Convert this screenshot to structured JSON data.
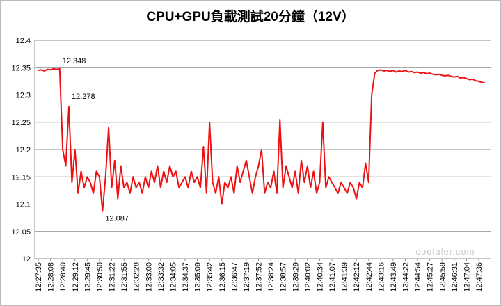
{
  "chart_data": {
    "type": "line",
    "title": "CPU+GPU負載測試20分鐘（12V）",
    "watermark": "coolaler.com",
    "categories": [
      "12:27:35",
      null,
      null,
      null,
      "12:28:08",
      null,
      null,
      null,
      "12:28:40",
      null,
      null,
      null,
      "12:29:12",
      null,
      null,
      null,
      "12:29:45",
      null,
      null,
      null,
      "12:30:50",
      null,
      null,
      null,
      "12:31:22",
      null,
      null,
      null,
      "12:31:55",
      null,
      null,
      null,
      "12:32:28",
      null,
      null,
      null,
      "12:33:00",
      null,
      null,
      null,
      "12:33:32",
      null,
      null,
      null,
      "12:34:05",
      null,
      null,
      null,
      "12:34:37",
      null,
      null,
      null,
      "12:35:09",
      null,
      null,
      null,
      "12:35:42",
      null,
      null,
      null,
      "12:36:15",
      null,
      null,
      null,
      "12:36:47",
      null,
      null,
      null,
      "12:37:19",
      null,
      null,
      null,
      "12:37:52",
      null,
      null,
      null,
      "12:38:24",
      null,
      null,
      null,
      "12:38:57",
      null,
      null,
      null,
      "12:39:29",
      null,
      null,
      null,
      "12:40:02",
      null,
      null,
      null,
      "12:40:34",
      null,
      null,
      null,
      "12:41:07",
      null,
      null,
      null,
      "12:41:39",
      null,
      null,
      null,
      "12:42:12",
      null,
      null,
      null,
      "12:42:44",
      null,
      null,
      null,
      "12:43:16",
      null,
      null,
      null,
      "12:43:49",
      null,
      null,
      null,
      "12:44:22",
      null,
      null,
      null,
      "12:44:54",
      null,
      null,
      null,
      "12:45:27",
      null,
      null,
      null,
      "12:45:59",
      null,
      null,
      null,
      "12:46:31",
      null,
      null,
      null,
      "12:47:04",
      null,
      null,
      null,
      "12:47:36",
      null,
      null
    ],
    "series": [
      {
        "name": "12V",
        "color": "#ee1111",
        "values": [
          12.345,
          12.346,
          12.344,
          12.347,
          12.346,
          12.348,
          12.347,
          12.348,
          12.2,
          12.17,
          12.278,
          12.14,
          12.2,
          12.12,
          12.16,
          12.13,
          12.15,
          12.14,
          12.12,
          12.16,
          12.15,
          12.087,
          12.15,
          12.24,
          12.13,
          12.18,
          12.11,
          12.17,
          12.13,
          12.14,
          12.12,
          12.15,
          12.13,
          12.14,
          12.12,
          12.15,
          12.13,
          12.16,
          12.14,
          12.17,
          12.13,
          12.16,
          12.14,
          12.17,
          12.15,
          12.16,
          12.13,
          12.14,
          12.15,
          12.13,
          12.16,
          12.14,
          12.15,
          12.13,
          12.205,
          12.12,
          12.25,
          12.14,
          12.12,
          12.15,
          12.1,
          12.14,
          12.13,
          12.15,
          12.12,
          12.17,
          12.14,
          12.16,
          12.18,
          12.15,
          12.12,
          12.15,
          12.17,
          12.2,
          12.12,
          12.14,
          12.13,
          12.16,
          12.12,
          12.255,
          12.13,
          12.17,
          12.15,
          12.13,
          12.16,
          12.12,
          12.18,
          12.14,
          12.17,
          12.13,
          12.16,
          12.12,
          12.14,
          12.25,
          12.13,
          12.15,
          12.14,
          12.13,
          12.12,
          12.14,
          12.13,
          12.12,
          12.14,
          12.13,
          12.11,
          12.14,
          12.13,
          12.175,
          12.14,
          12.3,
          12.34,
          12.345,
          12.346,
          12.344,
          12.345,
          12.343,
          12.345,
          12.342,
          12.344,
          12.343,
          12.345,
          12.342,
          12.343,
          12.341,
          12.342,
          12.34,
          12.341,
          12.339,
          12.34,
          12.338,
          12.337,
          12.338,
          12.336,
          12.335,
          12.336,
          12.334,
          12.333,
          12.334,
          12.331,
          12.332,
          12.33,
          12.328,
          12.329,
          12.326,
          12.325,
          12.323,
          12.322
        ]
      }
    ],
    "labeled_points": [
      7,
      10,
      21
    ],
    "ylim": [
      12,
      12.4
    ],
    "yticks": [
      12,
      12.05,
      12.1,
      12.15,
      12.2,
      12.25,
      12.3,
      12.35,
      12.4
    ],
    "grid": true
  }
}
